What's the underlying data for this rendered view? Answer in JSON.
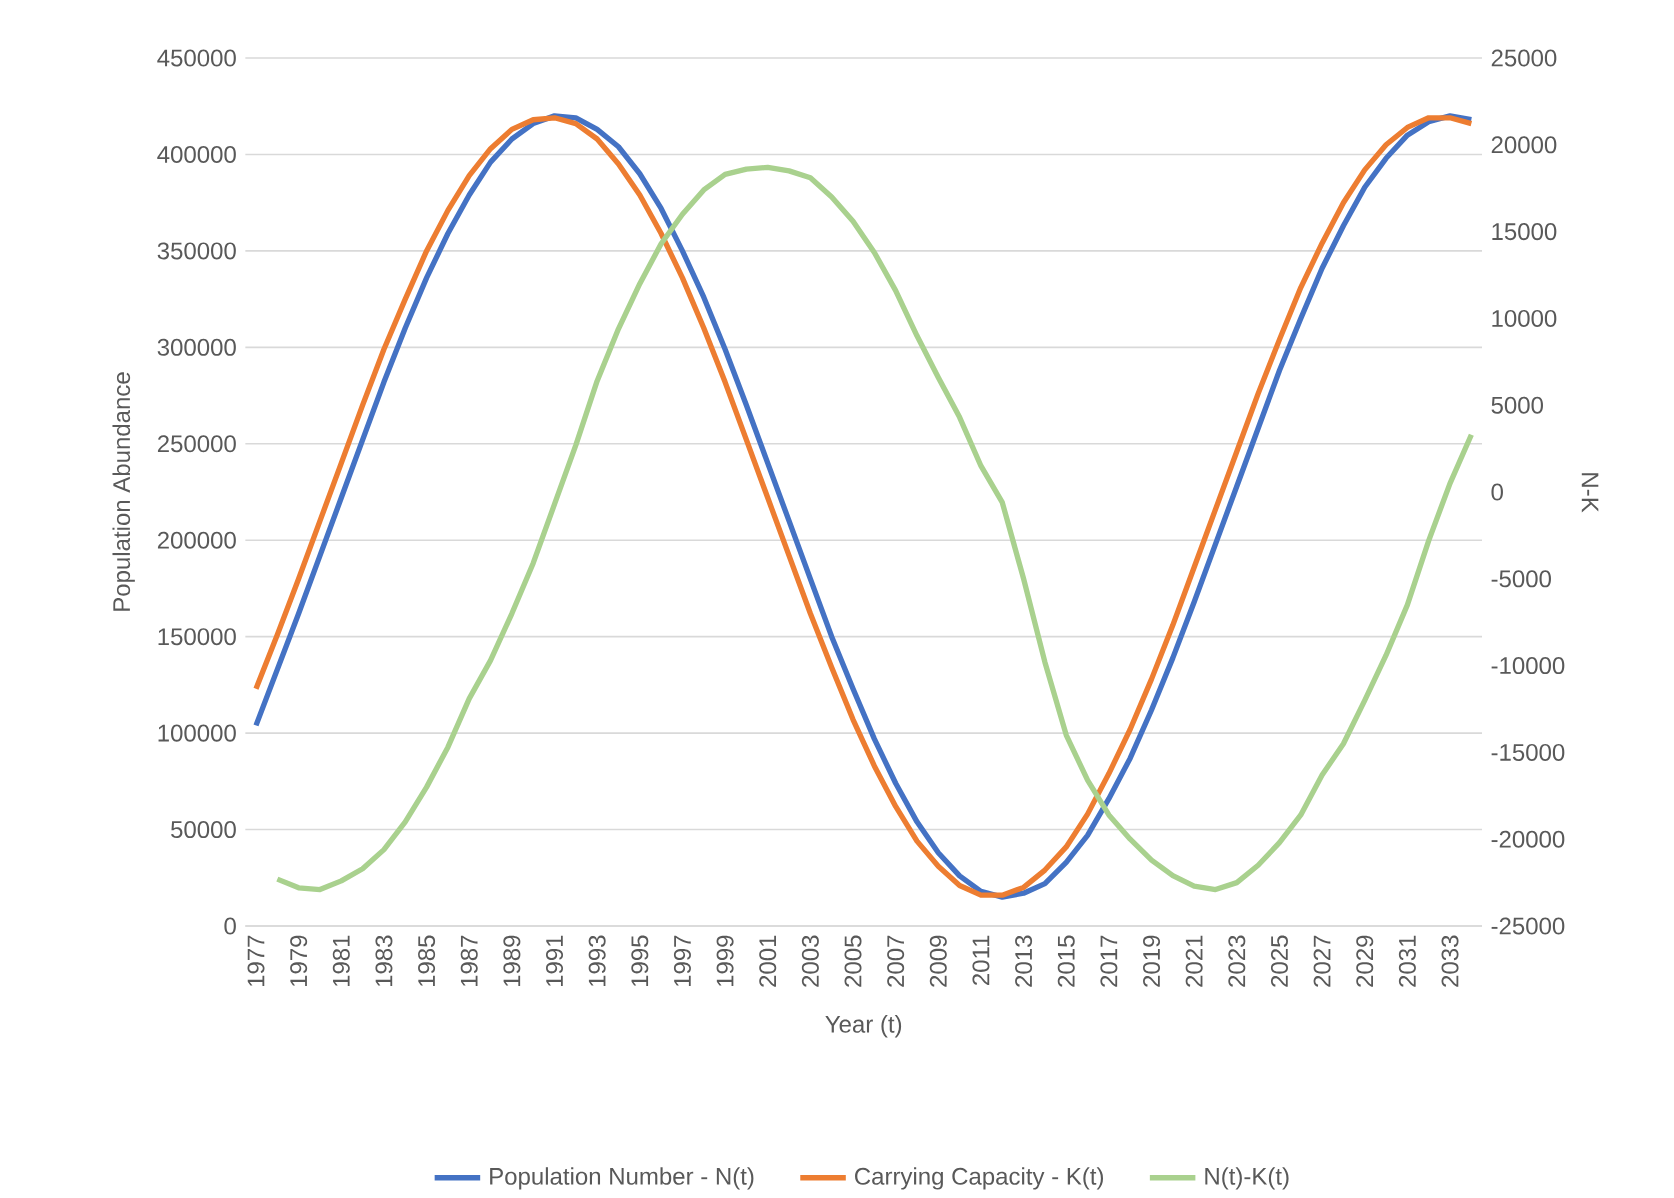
{
  "chart_data": {
    "type": "line",
    "xlabel": "Year (t)",
    "ylabel": "Population Abundance",
    "y2label": "N-K",
    "categories": [
      "1977",
      null,
      "1979",
      null,
      "1981",
      null,
      "1983",
      null,
      "1985",
      null,
      "1987",
      null,
      "1989",
      null,
      "1991",
      null,
      "1993",
      null,
      "1995",
      null,
      "1997",
      null,
      "1999",
      null,
      "2001",
      null,
      "2003",
      null,
      "2005",
      null,
      "2007",
      null,
      "2009",
      null,
      "2011",
      null,
      "2013",
      null,
      "2015",
      null,
      "2017",
      null,
      "2019",
      null,
      "2021",
      null,
      "2023",
      null,
      "2025",
      null,
      "2027",
      null,
      "2029",
      null,
      "2031",
      null,
      "2033",
      null
    ],
    "series": [
      {
        "name": "Population Number - N(t)",
        "color": "#4472c4",
        "values": [
          104000,
          133000,
          162000,
          192000,
          222000,
          252000,
          282000,
          310000,
          336000,
          359000,
          379000,
          396000,
          408000,
          416000,
          420000,
          419000,
          413000,
          404000,
          390000,
          372000,
          350000,
          326000,
          299000,
          270000,
          240000,
          210000,
          180000,
          150000,
          123000,
          97000,
          74000,
          54000,
          38000,
          26000,
          18000,
          15000,
          17000,
          22000,
          33000,
          47000,
          66000,
          87000,
          112000,
          139000,
          168000,
          198000,
          228000,
          258000,
          288000,
          315000,
          341000,
          363000,
          383000,
          398000,
          410000,
          417000,
          420000,
          418000
        ]
      },
      {
        "name": "Carrying Capacity - K(t)",
        "color": "#ed7d31",
        "values": [
          123000,
          151000,
          180000,
          210000,
          240000,
          270000,
          299000,
          325000,
          350000,
          371000,
          389000,
          403000,
          413000,
          418000,
          419000,
          416000,
          408000,
          395000,
          379000,
          359000,
          336000,
          310000,
          282000,
          252000,
          222000,
          192000,
          162000,
          134000,
          107000,
          83000,
          62000,
          44000,
          31000,
          21000,
          16000,
          16000,
          20000,
          29000,
          41000,
          58000,
          79000,
          102000,
          128000,
          156000,
          186000,
          216000,
          246000,
          276000,
          304000,
          331000,
          354000,
          375000,
          392000,
          405000,
          414000,
          419000,
          419000,
          416000
        ]
      },
      {
        "name": "N(t)-K(t)",
        "color": "#a9d18e",
        "axis": "y2",
        "values": [
          null,
          -22300,
          -22800,
          -22900,
          -22400,
          -21700,
          -20600,
          -19000,
          -17000,
          -14700,
          -11900,
          -9700,
          -7000,
          -4100,
          -700,
          2700,
          6400,
          9400,
          12000,
          14300,
          16000,
          17400,
          18300,
          18600,
          18700,
          18500,
          18100,
          17000,
          15600,
          13800,
          11600,
          9000,
          6600,
          4300,
          1500,
          -600,
          -5000,
          -9800,
          -14000,
          -16600,
          -18600,
          -20000,
          -21200,
          -22100,
          -22700,
          -22900,
          -22500,
          -21500,
          -20200,
          -18600,
          -16300,
          -14500,
          -12000,
          -9400,
          -6500,
          -2800,
          500,
          3300
        ]
      }
    ],
    "ylim": [
      0,
      450000
    ],
    "yticks": [
      0,
      50000,
      100000,
      150000,
      200000,
      250000,
      300000,
      350000,
      400000,
      450000
    ],
    "y2lim": [
      -25000,
      25000
    ],
    "y2ticks": [
      -25000,
      -20000,
      -15000,
      -10000,
      -5000,
      0,
      5000,
      10000,
      15000,
      20000,
      25000
    ],
    "grid": "y",
    "legend": "bottom",
    "marker": "none"
  }
}
